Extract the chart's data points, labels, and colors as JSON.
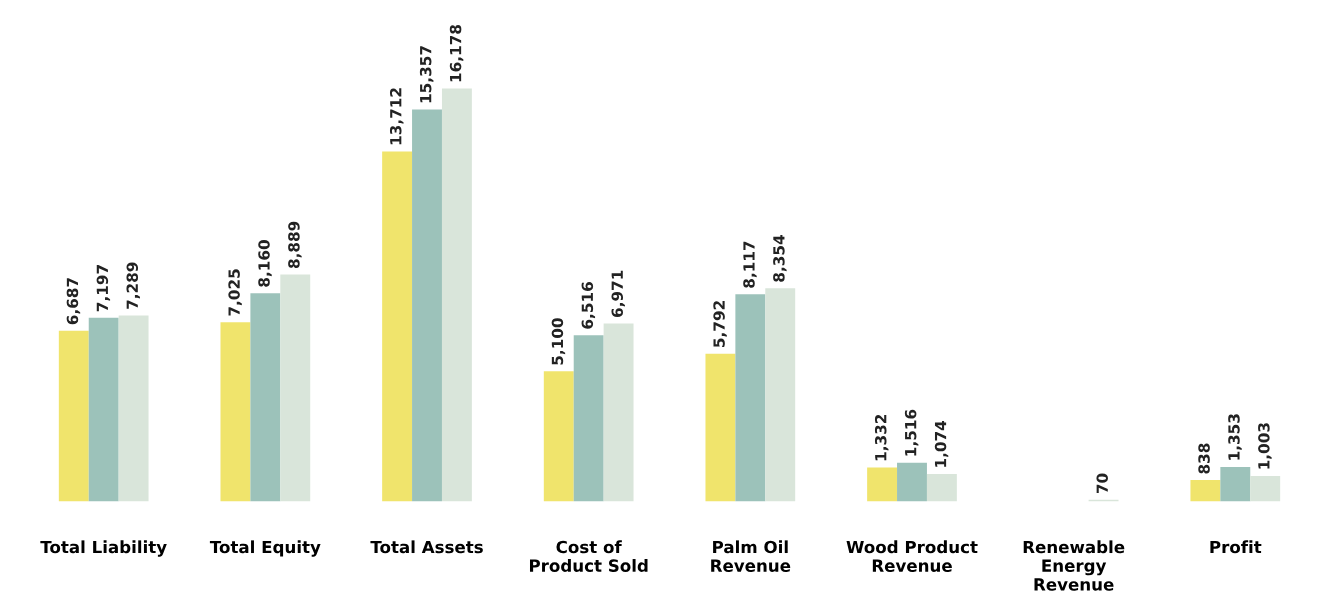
{
  "chart_data": {
    "type": "bar",
    "categories": [
      "Total Liability",
      "Total Equity",
      "Total Assets",
      "Cost of\nProduct Sold",
      "Palm Oil\nRevenue",
      "Wood Product\nRevenue",
      "Renewable\nEnergy\nRevenue",
      "Profit"
    ],
    "series": [
      {
        "color": "#f0e46c",
        "values": [
          6687,
          7025,
          13712,
          5100,
          5792,
          1332,
          null,
          838
        ],
        "value_labels": [
          "6,687",
          "7,025",
          "13,712",
          "5,100",
          "5,792",
          "1,332",
          null,
          "838"
        ]
      },
      {
        "color": "#9cc2ba",
        "values": [
          7197,
          8160,
          15357,
          6516,
          8117,
          1516,
          null,
          1353
        ],
        "value_labels": [
          "7,197",
          "8,160",
          "15,357",
          "6,516",
          "8,117",
          "1,516",
          null,
          "1,353"
        ]
      },
      {
        "color": "#d9e5da",
        "values": [
          7289,
          8889,
          16178,
          6971,
          8354,
          1074,
          70,
          1003
        ],
        "value_labels": [
          "7,289",
          "8,889",
          "16,178",
          "6,971",
          "8,354",
          "1,074",
          "70",
          "1,003"
        ]
      }
    ],
    "grid": false,
    "legend": false
  }
}
